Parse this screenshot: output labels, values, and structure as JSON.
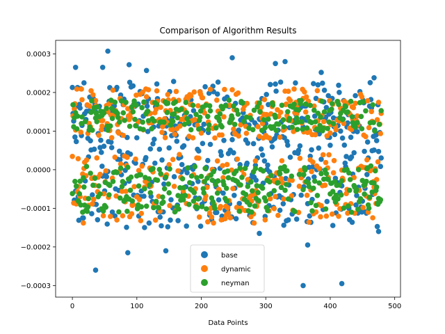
{
  "chart_data": {
    "type": "scatter",
    "title": "Comparison of Algorithm Results",
    "xlabel": "Data Points",
    "ylabel": "",
    "xlim": [
      -26,
      509
    ],
    "ylim": [
      -0.00033,
      0.000335
    ],
    "x_ticks": [
      0,
      100,
      200,
      300,
      400,
      500
    ],
    "x_tick_labels": [
      "0",
      "100",
      "200",
      "300",
      "400",
      "500"
    ],
    "y_ticks": [
      -0.0003,
      -0.0002,
      -0.0001,
      0.0,
      0.0001,
      0.0002,
      0.0003
    ],
    "y_tick_labels": [
      "−0.0003",
      "−0.0002",
      "−0.0001",
      "0.0000",
      "0.0001",
      "0.0002",
      "0.0003"
    ],
    "legend_position": "lower-center",
    "n_points_per_series": 480,
    "series": [
      {
        "name": "base",
        "color": "#1f77b4",
        "notable_points": [
          [
            5,
            0.000265
          ],
          [
            36,
            -0.00026
          ],
          [
            47,
            0.000265
          ],
          [
            55,
            0.000307
          ],
          [
            86,
            -0.000215
          ],
          [
            88,
            0.000272
          ],
          [
            115,
            0.000257
          ],
          [
            145,
            -0.00021
          ],
          [
            248,
            0.00029
          ],
          [
            290,
            -0.000165
          ],
          [
            315,
            0.000275
          ],
          [
            330,
            0.00028
          ],
          [
            358,
            -0.0003
          ],
          [
            365,
            -0.000195
          ],
          [
            386,
            0.000252
          ],
          [
            418,
            -0.000295
          ],
          [
            468,
            0.000238
          ],
          [
            475,
            -0.00016
          ]
        ],
        "band_low": [
          -0.00015,
          5e-05
        ],
        "band_high": [
          5e-05,
          0.00023
        ]
      },
      {
        "name": "dynamic",
        "color": "#ff7f0e",
        "band_low": [
          -0.00014,
          4e-05
        ],
        "band_high": [
          8e-05,
          0.00021
        ]
      },
      {
        "name": "neyman",
        "color": "#2ca02c",
        "band_low": [
          -0.00011,
          1e-05
        ],
        "band_high": [
          0.0001,
          0.00018
        ]
      }
    ]
  }
}
